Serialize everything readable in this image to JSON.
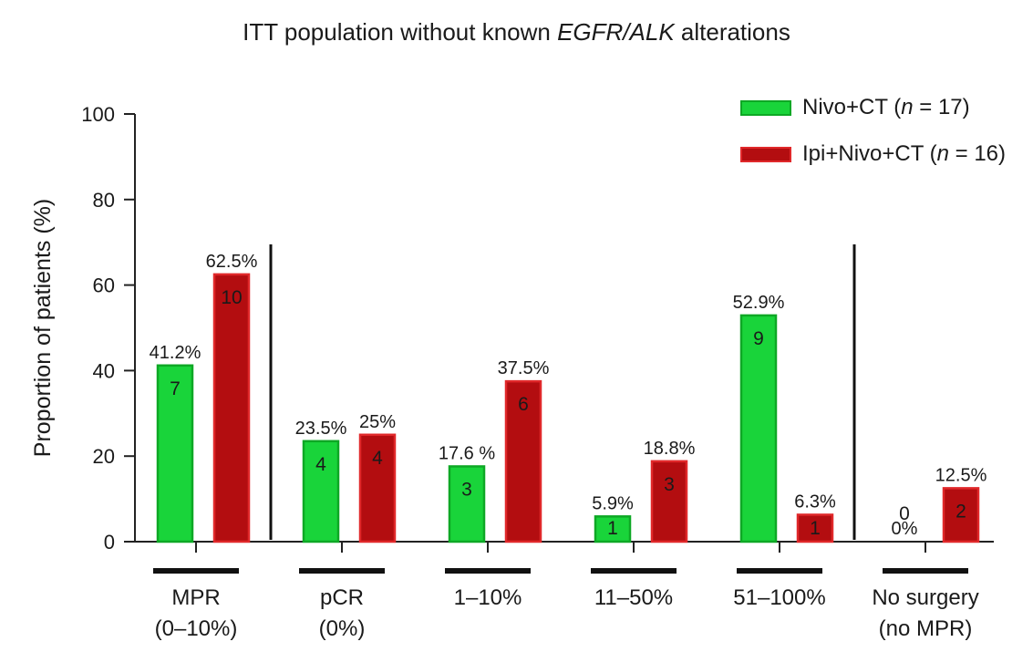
{
  "title": {
    "prefix": "ITT population without known ",
    "italic": "EGFR/ALK",
    "suffix": " alterations"
  },
  "legend": [
    {
      "name_prefix": "Nivo+CT (",
      "n_label": "n",
      "n_suffix": " = 17)",
      "color": "#19d43a",
      "edge": "#0ea825"
    },
    {
      "name_prefix": "Ipi+Nivo+CT (",
      "n_label": "n",
      "n_suffix": " = 16)",
      "color": "#b30d10",
      "edge": "#e0282a"
    }
  ],
  "chart_data": {
    "type": "bar",
    "ylabel": "Proportion of patients (%)",
    "ylim": [
      0,
      100
    ],
    "yticks": [
      0,
      20,
      40,
      60,
      80,
      100
    ],
    "grid": false,
    "legend_position": "top-right",
    "categories": [
      {
        "line1": "MPR",
        "line2": "(0–10%)"
      },
      {
        "line1": "pCR",
        "line2": "(0%)"
      },
      {
        "line1": "1–10%",
        "line2": ""
      },
      {
        "line1": "11–50%",
        "line2": ""
      },
      {
        "line1": "51–100%",
        "line2": ""
      },
      {
        "line1": "No surgery",
        "line2": "(no MPR)"
      }
    ],
    "series": [
      {
        "name": "Nivo+CT (n = 17)",
        "color": "#19d43a",
        "values": [
          41.2,
          23.5,
          17.6,
          5.9,
          52.9,
          0
        ],
        "pct_labels": [
          "41.2%",
          "23.5%",
          "17.6 %",
          "5.9%",
          "52.9%",
          "0%"
        ],
        "counts": [
          "7",
          "4",
          "3",
          "1",
          "9",
          "0"
        ]
      },
      {
        "name": "Ipi+Nivo+CT (n = 16)",
        "color": "#b30d10",
        "values": [
          62.5,
          25,
          37.5,
          18.8,
          6.3,
          12.5
        ],
        "pct_labels": [
          "62.5%",
          "25%",
          "37.5%",
          "18.8%",
          "6.3%",
          "12.5%"
        ],
        "counts": [
          "10",
          "4",
          "6",
          "3",
          "1",
          "2"
        ]
      }
    ],
    "separators_after": [
      0,
      4
    ]
  }
}
